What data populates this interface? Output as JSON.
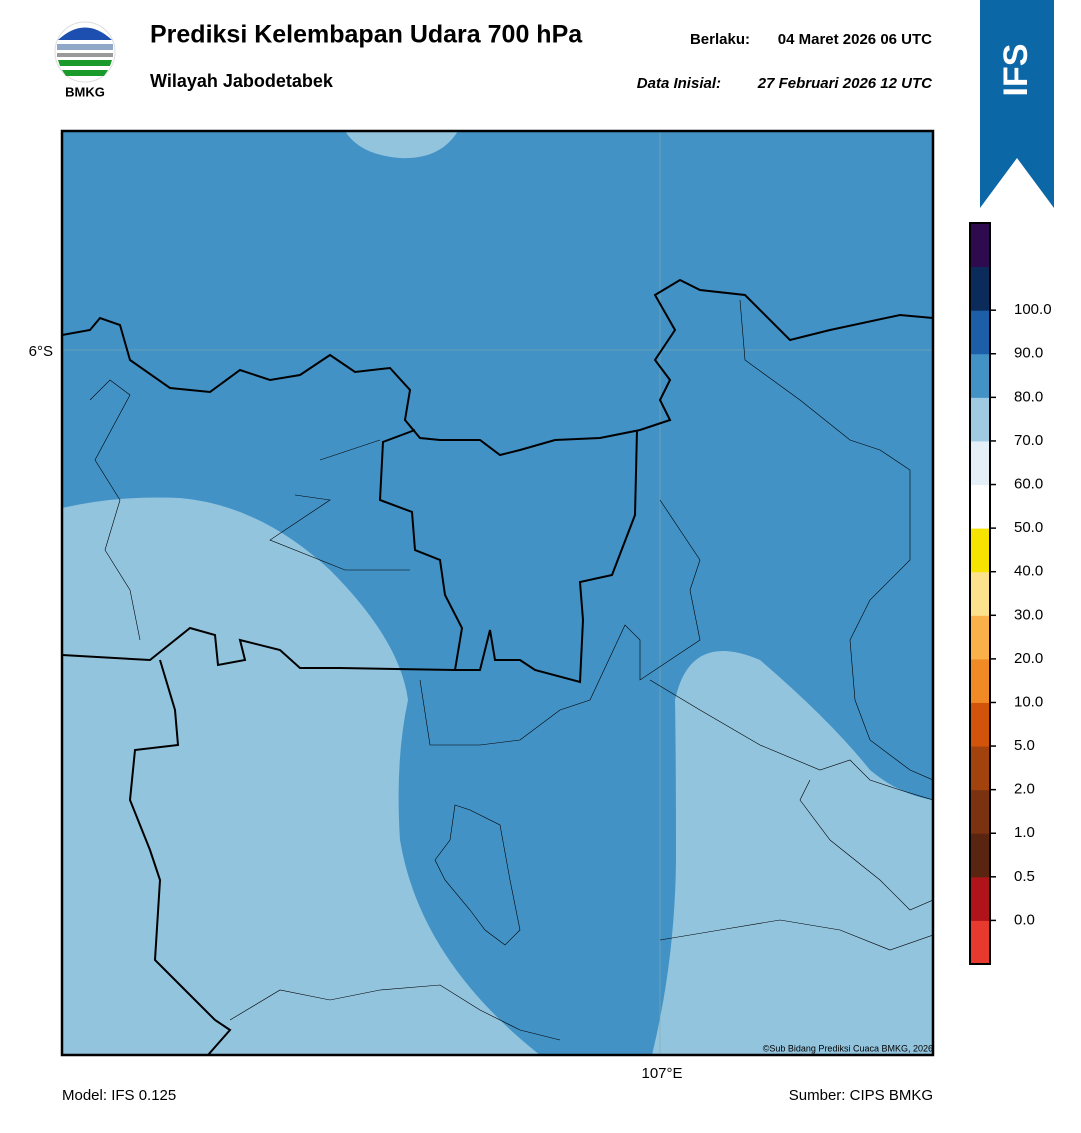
{
  "header": {
    "logo_text": "BMKG",
    "title": "Prediksi Kelembapan Udara 700 hPa",
    "subtitle": "Wilayah Jabodetabek",
    "valid_label": "Berlaku:",
    "valid_time": "04 Maret 2026 06 UTC",
    "init_label": "Data Inisial:",
    "init_time": "27 Februari 2026 12 UTC"
  },
  "banner": {
    "text": "IFS"
  },
  "map": {
    "lat_label": "6°S",
    "lon_label": "107°E",
    "credit": "©Sub Bidang Prediksi Cuaca BMKG, 2026"
  },
  "colorbar": {
    "labels": [
      "0.0",
      "0.5",
      "1.0",
      "2.0",
      "5.0",
      "10.0",
      "20.0",
      "30.0",
      "40.0",
      "50.0",
      "60.0",
      "70.0",
      "80.0",
      "90.0",
      "100.0"
    ],
    "colors": [
      "#e8392f",
      "#b0141a",
      "#5a2510",
      "#7a3210",
      "#a2420c",
      "#d2540a",
      "#f08a24",
      "#fbb14a",
      "#fde28e",
      "#f7e300",
      "#ffffff",
      "#e4eff8",
      "#9fcae1",
      "#4292c6",
      "#1c5ea8",
      "#0b2c5a",
      "#2e0b4f"
    ]
  },
  "footer": {
    "model": "Model: IFS 0.125",
    "source": "Sumber: CIPS BMKG"
  }
}
